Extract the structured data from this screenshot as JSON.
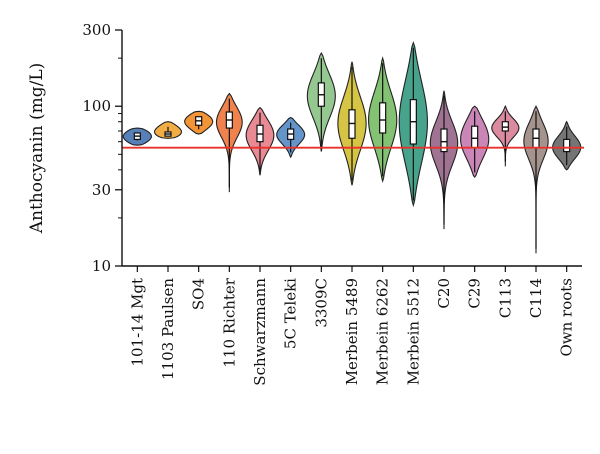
{
  "chart_data": {
    "type": "violin",
    "title": "",
    "xlabel": "",
    "ylabel": "Anthocyanin (mg/L)",
    "yscale": "log",
    "ylim": [
      10,
      300
    ],
    "yticks": [
      10,
      30,
      100,
      300
    ],
    "reference_line": {
      "value": 55,
      "color": "#e8322b"
    },
    "categories": [
      "101-14 Mgt",
      "1103 Paulsen",
      "SO4",
      "110 Richter",
      "Schwarzmann",
      "5C Teleki",
      "3309C",
      "Merbein 5489",
      "Merbein 6262",
      "Merbein 5512",
      "C20",
      "C29",
      "C113",
      "C114",
      "Own roots"
    ],
    "series": [
      {
        "category": "101-14 Mgt",
        "color": "#4e79b5",
        "min": 57,
        "max": 73,
        "q1": 62,
        "median": 65,
        "q3": 68
      },
      {
        "category": "1103 Paulsen",
        "color": "#f1a93b",
        "min": 63,
        "max": 80,
        "q1": 65,
        "median": 67,
        "q3": 69
      },
      {
        "category": "SO4",
        "color": "#f28e2b",
        "min": 67,
        "max": 93,
        "q1": 76,
        "median": 81,
        "q3": 86
      },
      {
        "category": "110 Richter",
        "color": "#ef7b45",
        "min": 29,
        "max": 120,
        "q1": 73,
        "median": 82,
        "q3": 92
      },
      {
        "category": "Schwarzmann",
        "color": "#e8848f",
        "min": 37,
        "max": 98,
        "q1": 60,
        "median": 67,
        "q3": 76
      },
      {
        "category": "5C Teleki",
        "color": "#5b8fc7",
        "min": 48,
        "max": 85,
        "q1": 62,
        "median": 67,
        "q3": 72
      },
      {
        "category": "3309C",
        "color": "#8fc48a",
        "min": 52,
        "max": 215,
        "q1": 100,
        "median": 118,
        "q3": 140
      },
      {
        "category": "Merbein 5489",
        "color": "#d4c23a",
        "min": 32,
        "max": 190,
        "q1": 63,
        "median": 78,
        "q3": 95
      },
      {
        "category": "Merbein 6262",
        "color": "#7cbf6a",
        "min": 34,
        "max": 200,
        "q1": 68,
        "median": 82,
        "q3": 105
      },
      {
        "category": "Merbein 5512",
        "color": "#3d9e85",
        "min": 24,
        "max": 250,
        "q1": 58,
        "median": 80,
        "q3": 110
      },
      {
        "category": "C20",
        "color": "#9b6b8d",
        "min": 17,
        "max": 125,
        "q1": 52,
        "median": 60,
        "q3": 72
      },
      {
        "category": "C29",
        "color": "#c77fb3",
        "min": 36,
        "max": 100,
        "q1": 55,
        "median": 63,
        "q3": 75
      },
      {
        "category": "C113",
        "color": "#d9859a",
        "min": 42,
        "max": 100,
        "q1": 70,
        "median": 74,
        "q3": 80
      },
      {
        "category": "C114",
        "color": "#a08e88",
        "min": 12,
        "max": 100,
        "q1": 55,
        "median": 63,
        "q3": 72
      },
      {
        "category": "Own roots",
        "color": "#6e6e6e",
        "min": 40,
        "max": 80,
        "q1": 52,
        "median": 55,
        "q3": 62
      }
    ]
  }
}
